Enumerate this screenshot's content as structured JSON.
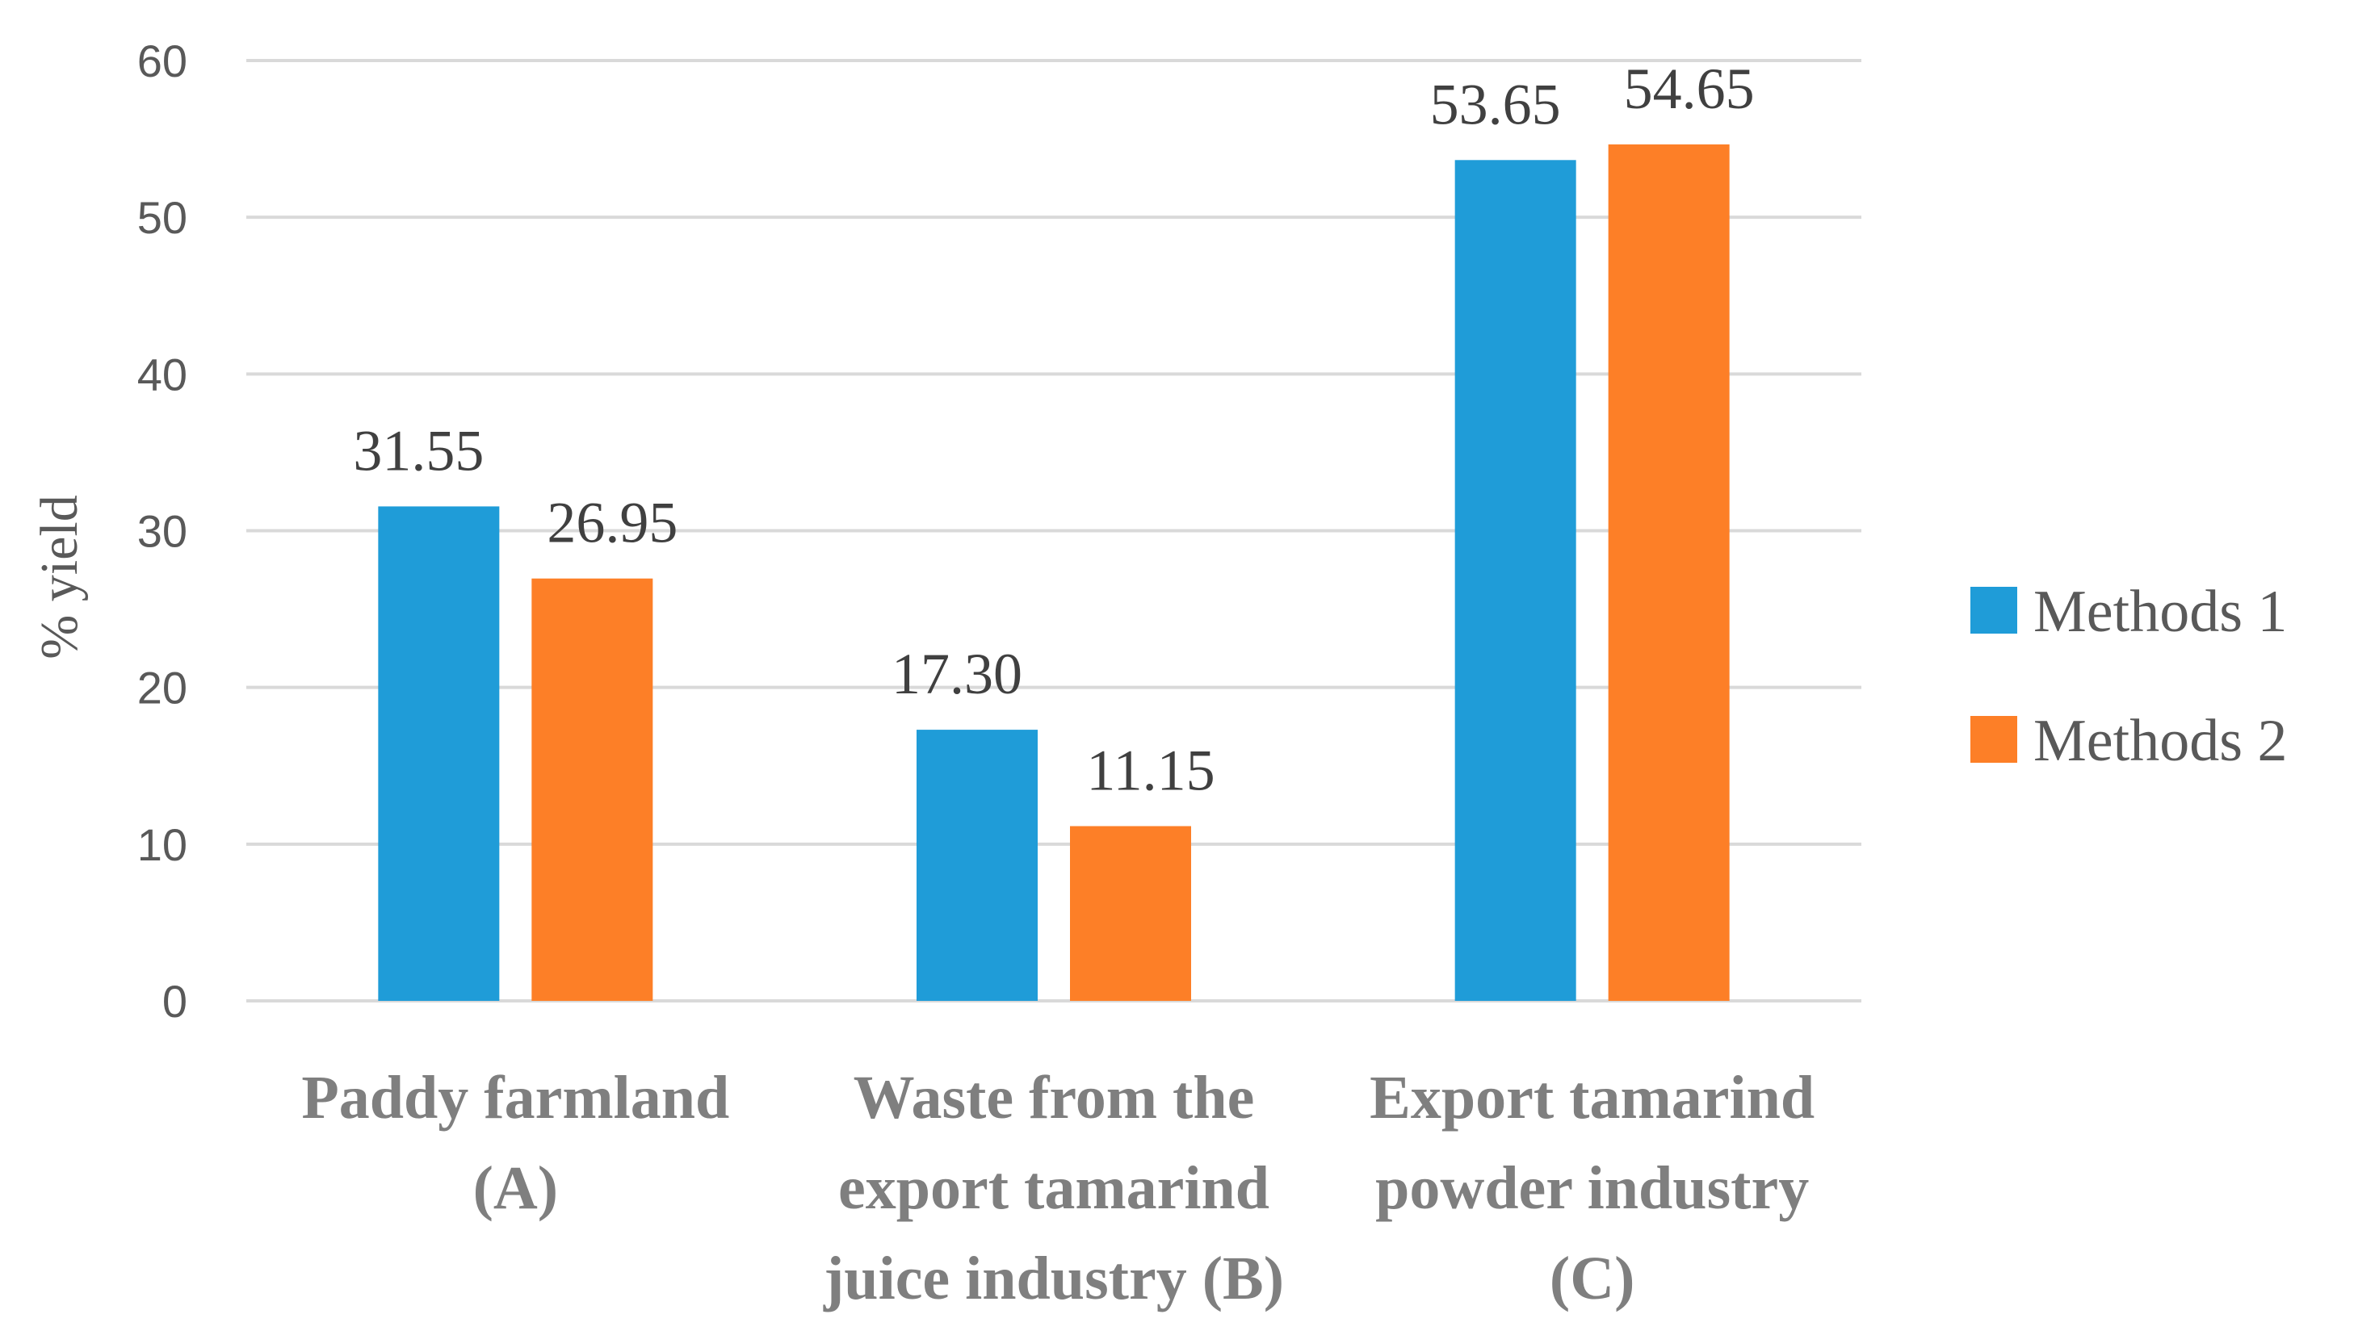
{
  "chart_data": {
    "type": "bar",
    "title": "",
    "xlabel": "",
    "ylabel": "% yield",
    "ylim": [
      0,
      60
    ],
    "yticks": [
      0,
      10,
      20,
      30,
      40,
      50,
      60
    ],
    "grid": true,
    "legend_position": "right",
    "categories": [
      [
        "Paddy farmland",
        "(A)"
      ],
      [
        "Waste from the",
        "export tamarind",
        "juice industry (B)"
      ],
      [
        "Export tamarind",
        "powder industry",
        "(C)"
      ]
    ],
    "series": [
      {
        "name": "Methods 1",
        "color": "#1f9cd8",
        "values": [
          31.55,
          17.3,
          53.65
        ],
        "labels": [
          "31.55",
          "17.30",
          "53.65"
        ]
      },
      {
        "name": "Methods 2",
        "color": "#fd7f27",
        "values": [
          26.95,
          11.15,
          54.65
        ],
        "labels": [
          "26.95",
          "11.15",
          "54.65"
        ]
      }
    ]
  }
}
